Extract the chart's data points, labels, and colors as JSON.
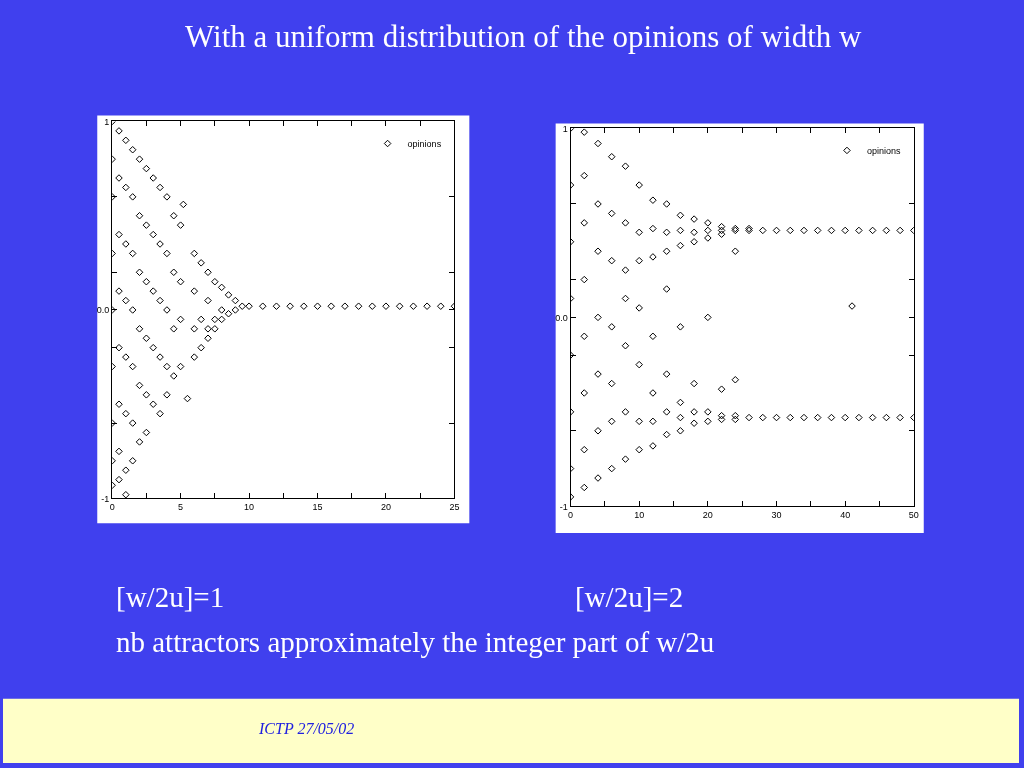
{
  "chart_data": [
    {
      "type": "scatter",
      "title": "With a uniform distribution of the opinions of width w",
      "annotations": [
        "[w/2u]=1",
        "nb attractors approximately the integer part of w/2u",
        "ICTP 27/05/02"
      ],
      "xlim": [
        0,
        25
      ],
      "ylim": [
        -1,
        1
      ],
      "xticks": [
        0,
        {
          "value": 2.5,
          "label": null
        },
        5,
        {
          "value": 7.5,
          "label": null
        },
        10,
        {
          "value": 12.5,
          "label": null
        },
        15,
        {
          "value": 17.5,
          "label": null
        },
        20,
        {
          "value": 22.5,
          "label": null
        },
        25
      ],
      "yticks": [
        -1,
        {
          "value": -0.6,
          "label": null
        },
        {
          "value": -0.2,
          "label": null
        },
        {
          "value": 0,
          "label": "0.0"
        },
        {
          "value": 0.2,
          "label": null
        },
        {
          "value": 0.6,
          "label": null
        },
        1
      ],
      "legend": "top right",
      "marker": "diamond",
      "series": [
        {
          "name": "opinions",
          "color": "#000000",
          "x": [
            0,
            0,
            0,
            0,
            0,
            0,
            0,
            0,
            0,
            0.5,
            0.5,
            0.5,
            0.5,
            0.5,
            0.5,
            0.5,
            0.5,
            1,
            1,
            1,
            1,
            1,
            1,
            1,
            1,
            1.5,
            1.5,
            1.5,
            1.5,
            1.5,
            1.5,
            1.5,
            2,
            2,
            2,
            2,
            2,
            2,
            2.5,
            2.5,
            2.5,
            2.5,
            2.5,
            2.5,
            3,
            3,
            3,
            3,
            3,
            3.5,
            3.5,
            3.5,
            3.5,
            3.5,
            4,
            4,
            4,
            4,
            4,
            4.5,
            4.5,
            4.5,
            4.5,
            5,
            5,
            5,
            5,
            5.2,
            5.5,
            6,
            6,
            6,
            6,
            6.5,
            6.5,
            6.5,
            7,
            7,
            7,
            7,
            7.5,
            7.5,
            7.5,
            8,
            8,
            8,
            8.5,
            8.5,
            9,
            9,
            9.5,
            10,
            11,
            12,
            13,
            14,
            15,
            16,
            17,
            18,
            19,
            20,
            21,
            22,
            23,
            24,
            25
          ],
          "values": [
            1,
            0.8,
            0.6,
            0.3,
            0,
            -0.3,
            -0.6,
            -0.8,
            -0.93,
            0.95,
            0.7,
            0.4,
            0.1,
            -0.2,
            -0.5,
            -0.75,
            -0.9,
            0.9,
            0.65,
            0.35,
            0.05,
            -0.25,
            -0.55,
            -0.85,
            -0.98,
            0.85,
            0.6,
            0.3,
            0,
            -0.3,
            -0.6,
            -0.8,
            0.8,
            0.5,
            0.2,
            -0.1,
            -0.4,
            -0.7,
            0.75,
            0.45,
            0.15,
            -0.15,
            -0.45,
            -0.65,
            0.7,
            0.4,
            0.1,
            -0.2,
            -0.5,
            0.65,
            0.35,
            0.05,
            -0.25,
            -0.55,
            0.6,
            0.3,
            0,
            -0.3,
            -0.45,
            0.5,
            0.2,
            -0.1,
            -0.35,
            0.45,
            0.15,
            -0.05,
            -0.3,
            0.56,
            -0.47,
            0.3,
            0.1,
            -0.1,
            -0.25,
            0.25,
            -0.05,
            -0.2,
            0.2,
            0.05,
            -0.1,
            -0.15,
            0.15,
            -0.05,
            -0.1,
            0.12,
            0,
            -0.05,
            0.08,
            -0.02,
            0.05,
            0,
            0.02,
            0.02,
            0.02,
            0.02,
            0.02,
            0.02,
            0.02,
            0.02,
            0.02,
            0.02,
            0.02,
            0.02,
            0.02,
            0.02,
            0.02,
            0.02,
            0.02
          ]
        }
      ]
    },
    {
      "type": "scatter",
      "annotations": [
        "[w/2u]=2"
      ],
      "xlim": [
        0,
        50
      ],
      "ylim": [
        -1,
        1
      ],
      "xticks": [
        0,
        {
          "value": 5,
          "label": null
        },
        10,
        {
          "value": 15,
          "label": null
        },
        20,
        {
          "value": 25,
          "label": null
        },
        30,
        {
          "value": 35,
          "label": null
        },
        40,
        {
          "value": 45,
          "label": null
        },
        50
      ],
      "yticks": [
        -1,
        {
          "value": -0.6,
          "label": null
        },
        {
          "value": -0.2,
          "label": null
        },
        {
          "value": 0,
          "label": "0.0"
        },
        {
          "value": 0.2,
          "label": null
        },
        {
          "value": 0.6,
          "label": null
        },
        1
      ],
      "legend": "top right",
      "marker": "diamond",
      "series": [
        {
          "name": "opinions",
          "color": "#000000",
          "x": [
            0,
            0,
            0,
            0,
            0,
            0,
            0,
            0,
            2,
            2,
            2,
            2,
            2,
            2,
            2,
            2,
            4,
            4,
            4,
            4,
            4,
            4,
            4,
            6,
            6,
            6,
            6,
            6,
            6,
            6,
            8,
            8,
            8,
            8,
            8,
            8,
            8,
            10,
            10,
            10,
            10,
            10,
            10,
            10,
            12,
            12,
            12,
            12,
            12,
            12,
            12,
            14,
            14,
            14,
            14,
            14,
            14,
            14,
            16,
            16,
            16,
            16,
            16,
            16,
            16,
            18,
            18,
            18,
            18,
            18,
            18,
            20,
            20,
            20,
            20,
            20,
            20,
            22,
            22,
            22,
            22,
            22,
            22,
            24,
            24,
            24,
            24,
            24,
            24,
            26,
            26,
            26,
            28,
            28,
            30,
            30,
            32,
            32,
            34,
            34,
            36,
            36,
            38,
            38,
            40,
            40,
            41,
            42,
            42,
            44,
            44,
            46,
            46,
            48,
            48,
            50,
            50
          ],
          "values": [
            1,
            0.7,
            0.4,
            0.1,
            -0.2,
            -0.5,
            -0.8,
            -0.95,
            0.98,
            0.75,
            0.5,
            0.2,
            -0.1,
            -0.4,
            -0.7,
            -0.9,
            0.92,
            0.6,
            0.35,
            0,
            -0.3,
            -0.6,
            -0.85,
            0.85,
            0.55,
            0.3,
            -0.05,
            -0.35,
            -0.55,
            -0.8,
            0.8,
            0.5,
            0.25,
            0.1,
            -0.15,
            -0.5,
            -0.75,
            0.7,
            0.45,
            0.3,
            0.05,
            -0.25,
            -0.55,
            -0.7,
            0.62,
            0.47,
            0.32,
            -0.1,
            -0.4,
            -0.55,
            -0.68,
            0.6,
            0.45,
            0.35,
            0.15,
            -0.3,
            -0.5,
            -0.62,
            0.54,
            0.46,
            0.38,
            -0.05,
            -0.45,
            -0.53,
            -0.6,
            0.52,
            0.45,
            0.4,
            -0.35,
            -0.5,
            -0.56,
            0.5,
            0.46,
            0.42,
            0,
            -0.5,
            -0.55,
            0.48,
            0.46,
            0.44,
            -0.38,
            -0.52,
            -0.54,
            0.47,
            0.46,
            0.35,
            -0.33,
            -0.52,
            -0.54,
            0.47,
            0.46,
            -0.53,
            0.46,
            -0.53,
            0.46,
            -0.53,
            0.46,
            -0.53,
            0.46,
            -0.53,
            0.46,
            -0.53,
            0.46,
            -0.53,
            0.46,
            -0.53,
            0.06,
            0.46,
            -0.53,
            0.46,
            -0.53,
            0.46,
            -0.53,
            0.46,
            -0.53,
            0.46,
            -0.53
          ]
        }
      ]
    }
  ]
}
